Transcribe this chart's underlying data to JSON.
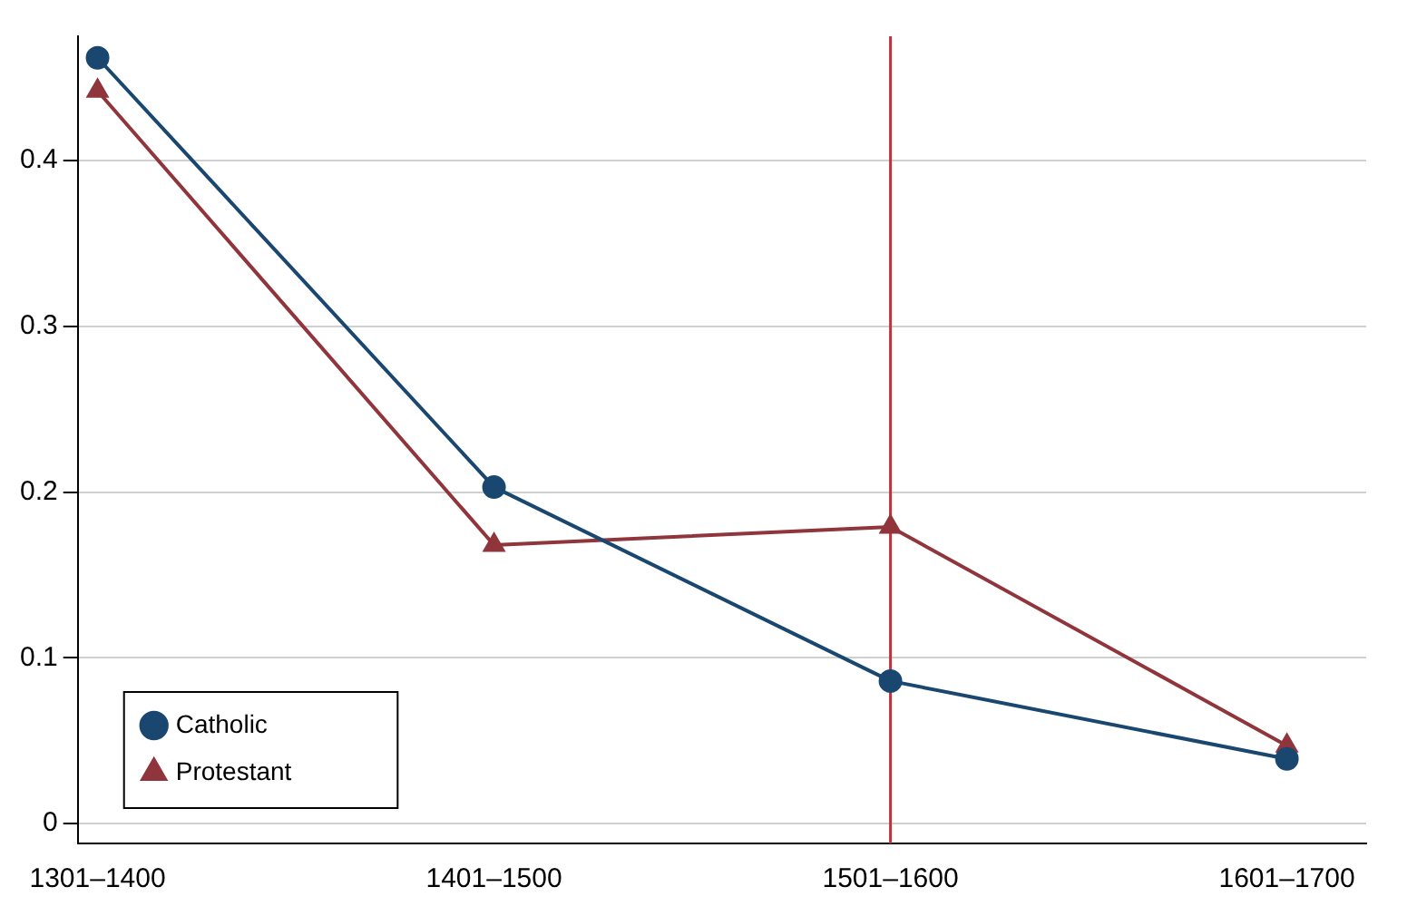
{
  "chart_data": {
    "type": "line",
    "categories": [
      "1301–1400",
      "1401–1500",
      "1501–1600",
      "1601–1700"
    ],
    "series": [
      {
        "name": "Catholic",
        "color": "#1a476f",
        "values": [
          0.462,
          0.203,
          0.086,
          0.039
        ],
        "marker": "circle"
      },
      {
        "name": "Protestant",
        "color": "#90353b",
        "values": [
          0.442,
          0.168,
          0.179,
          0.047
        ],
        "marker": "triangle"
      }
    ],
    "ylim": [
      -0.012,
      0.475
    ],
    "yticks": [
      0,
      0.1,
      0.2,
      0.3,
      0.4
    ],
    "grid": "y",
    "legend": "bottom left",
    "ref_lines": [
      {
        "axis": "x",
        "value": "1501–1600",
        "color": "#c0323c"
      }
    ]
  }
}
